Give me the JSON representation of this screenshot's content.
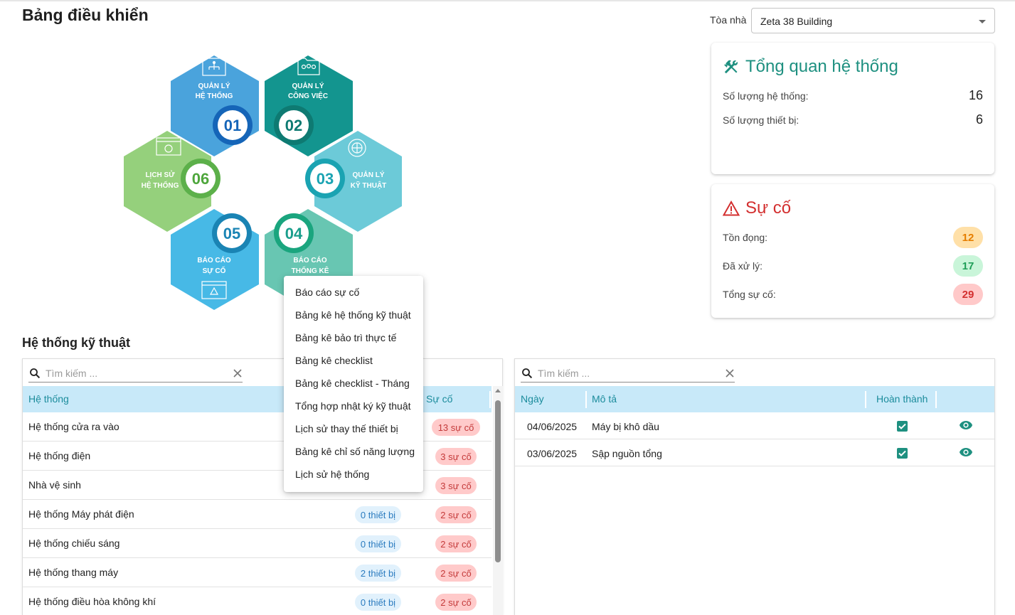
{
  "page": {
    "title": "Bảng điều khiển"
  },
  "building": {
    "label": "Tòa nhà",
    "selected": "Zeta 38 Building"
  },
  "overview": {
    "title": "Tổng quan hệ thống",
    "rows": [
      {
        "label": "Số lượng hệ thống:",
        "value": "16"
      },
      {
        "label": "Số lượng thiết bị:",
        "value": "6"
      }
    ]
  },
  "incident": {
    "title": "Sự cố",
    "rows": [
      {
        "label": "Tồn đọng:",
        "value": "12"
      },
      {
        "label": "Đã xử lý:",
        "value": "17"
      },
      {
        "label": "Tổng sự cố:",
        "value": "29"
      }
    ]
  },
  "modules": [
    {
      "num": "01",
      "line1": "QUẢN LÝ",
      "line2": "HỆ THỐNG",
      "icon": "hierarchy-icon",
      "color": "#4aa3dc"
    },
    {
      "num": "02",
      "line1": "QUẢN LÝ",
      "line2": "CÔNG VIỆC",
      "icon": "folder-team-icon",
      "color": "#13958f"
    },
    {
      "num": "03",
      "line1": "QUẢN LÝ",
      "line2": "KỸ THUẬT",
      "icon": "globe-gear-icon",
      "color": "#6ccad8"
    },
    {
      "num": "04",
      "line1": "BÁO CÁO",
      "line2": "THỐNG KÊ",
      "icon": "chart-icon",
      "color": "#68c6b2"
    },
    {
      "num": "05",
      "line1": "BÁO CÁO",
      "line2": "SỰ CỐ",
      "icon": "warning-window-icon",
      "color": "#47b9e6"
    },
    {
      "num": "06",
      "line1": "LỊCH SỬ",
      "line2": "HỆ THỐNG",
      "icon": "history-window-icon",
      "color": "#95d07c"
    }
  ],
  "systems_section": {
    "title": "Hệ thống kỹ thuật"
  },
  "systems_table": {
    "search_placeholder": "Tìm kiếm ...",
    "columns": [
      "Hệ thống",
      "Sự cố"
    ],
    "rows": [
      {
        "name": "Hệ thống cửa ra vào",
        "devices": "",
        "incidents": "13 sự cố"
      },
      {
        "name": "Hệ thống điện",
        "devices": "",
        "incidents": "3 sự cố"
      },
      {
        "name": "Nhà vệ sinh",
        "devices": "",
        "incidents": "3 sự cố"
      },
      {
        "name": "Hệ thống Máy phát điện",
        "devices": "0 thiết bị",
        "incidents": "2 sự cố"
      },
      {
        "name": "Hệ thống chiếu sáng",
        "devices": "0 thiết bị",
        "incidents": "2 sự cố"
      },
      {
        "name": "Hệ thống thang máy",
        "devices": "2 thiết bị",
        "incidents": "2 sự cố"
      },
      {
        "name": "Hệ thống điều hòa không khí",
        "devices": "0 thiết bị",
        "incidents": "2 sự cố"
      }
    ]
  },
  "incident_table": {
    "search_placeholder": "Tìm kiếm ...",
    "columns": [
      "Ngày",
      "Mô tả",
      "Hoàn thành"
    ],
    "rows": [
      {
        "date": "04/06/2025",
        "desc": "Máy bị khô dầu",
        "done": true
      },
      {
        "date": "03/06/2025",
        "desc": "Sập nguồn tổng",
        "done": true
      }
    ]
  },
  "report_menu": {
    "items": [
      "Báo cáo sự cố",
      "Bảng kê hệ thống kỹ thuật",
      "Bảng kê bảo trì thực tế",
      "Bảng kê checklist",
      "Bảng kê checklist - Tháng",
      "Tổng hợp nhật ký kỹ thuật",
      "Lịch sử thay thế thiết bị",
      "Bảng kê chỉ số năng lượng",
      "Lịch sử hệ thống"
    ]
  },
  "colors": {
    "accent": "#1e9080",
    "danger": "#d32f2f",
    "header_bg": "#c8e9f9"
  }
}
